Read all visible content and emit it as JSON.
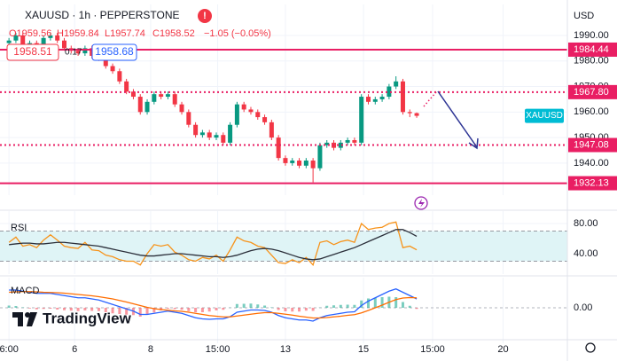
{
  "header": {
    "symbol": "XAUUSD · 1h · PEPPERSTONE",
    "ohlc": [
      "O1959.56",
      "H1959.84",
      "L1957.74",
      "C1958.52",
      "−1.05 (−0.05%)"
    ],
    "bid": "1958.51",
    "spread": "0.17",
    "ask": "1958.68",
    "currency": "USD",
    "symbol_tag": "XAUUSD",
    "logo": "TradingView"
  },
  "chart_data": [
    {
      "type": "candlestick",
      "up_color": "#089981",
      "down_color": "#f23645",
      "x": [
        0,
        1,
        2,
        3,
        4,
        5,
        6,
        7,
        8,
        9,
        10,
        11,
        12,
        13,
        14,
        15,
        16,
        17,
        18,
        19,
        20,
        21,
        22,
        23,
        24,
        25,
        26,
        27,
        28,
        29,
        30,
        31,
        32,
        33,
        34,
        35,
        36,
        37,
        38,
        39,
        40,
        41,
        42,
        43,
        44,
        45,
        46,
        47,
        48,
        49,
        50,
        51,
        52,
        53,
        54,
        55,
        56,
        57,
        58,
        59
      ],
      "open": [
        1987,
        1988,
        1990,
        1986,
        1987,
        1985,
        1989,
        1990,
        1988,
        1985,
        1984,
        1983,
        1985,
        1982,
        1981,
        1978,
        1976,
        1972,
        1968,
        1966,
        1960,
        1964,
        1967,
        1966,
        1967,
        1963,
        1960,
        1955,
        1951,
        1952,
        1950,
        1951,
        1948,
        1955,
        1963,
        1961,
        1960,
        1958,
        1956,
        1950,
        1942,
        1940,
        1941,
        1939,
        1941,
        1938,
        1947,
        1948,
        1946,
        1948,
        1949,
        1948,
        1966,
        1964,
        1965,
        1966,
        1970,
        1972,
        1960,
        1959.56
      ],
      "high": [
        1989,
        1991,
        1991,
        1988,
        1988,
        1990,
        1991,
        1991,
        1989,
        1986,
        1985,
        1986,
        1986,
        1983,
        1982,
        1979,
        1977,
        1973,
        1969,
        1967,
        1965,
        1968,
        1968,
        1968,
        1968,
        1964,
        1961,
        1956,
        1953,
        1953,
        1952,
        1952,
        1956,
        1964,
        1964,
        1962,
        1961,
        1959,
        1957,
        1951,
        1943,
        1942,
        1942,
        1942,
        1942,
        1948,
        1949,
        1949,
        1949,
        1950,
        1950,
        1967,
        1967,
        1966,
        1967,
        1971,
        1974,
        1973,
        1961,
        1959.84
      ],
      "low": [
        1986,
        1987,
        1985,
        1985,
        1984,
        1984,
        1988,
        1987,
        1984,
        1983,
        1982,
        1982,
        1981,
        1980,
        1977,
        1975,
        1971,
        1967,
        1965,
        1959,
        1959,
        1963,
        1965,
        1965,
        1962,
        1959,
        1954,
        1950,
        1950,
        1949,
        1949,
        1947,
        1947,
        1954,
        1960,
        1959,
        1957,
        1955,
        1949,
        1941,
        1939,
        1939,
        1938,
        1938,
        1932.5,
        1937,
        1946,
        1945,
        1945,
        1947,
        1947,
        1947,
        1963,
        1963,
        1964,
        1965,
        1969,
        1959,
        1958,
        1957.74
      ],
      "close": [
        1988,
        1990,
        1986,
        1987,
        1985,
        1989,
        1990,
        1988,
        1985,
        1984,
        1983,
        1985,
        1982,
        1981,
        1978,
        1976,
        1972,
        1968,
        1966,
        1960,
        1964,
        1967,
        1966,
        1967,
        1963,
        1960,
        1955,
        1951,
        1952,
        1950,
        1951,
        1948,
        1955,
        1963,
        1961,
        1960,
        1958,
        1956,
        1950,
        1942,
        1940,
        1941,
        1939,
        1941,
        1938,
        1947,
        1948,
        1946,
        1948,
        1949,
        1948,
        1966,
        1964,
        1965,
        1966,
        1970,
        1972,
        1960,
        1959.56,
        1958.52
      ],
      "xlim": [
        -1.3,
        80.8
      ],
      "xticks": [
        {
          "value": 0,
          "label": "6:00"
        },
        {
          "value": 9.5,
          "label": "6"
        },
        {
          "value": 20.5,
          "label": "8"
        },
        {
          "value": 30.2,
          "label": "15:00"
        },
        {
          "value": 40,
          "label": "13"
        },
        {
          "value": 51.3,
          "label": "15"
        },
        {
          "value": 61.3,
          "label": "15:00"
        },
        {
          "value": 71.5,
          "label": "20"
        }
      ],
      "ylim": [
        1929.2,
        2000.4
      ],
      "yticks": [
        {
          "value": 1990,
          "label": "1990.00"
        },
        {
          "value": 1980,
          "label": "1980.00"
        },
        {
          "value": 1970,
          "label": "1970.00"
        },
        {
          "value": 1960,
          "label": "1960.00"
        },
        {
          "value": 1950,
          "label": "1950.00"
        },
        {
          "value": 1940,
          "label": "1940.00"
        }
      ],
      "grid": true,
      "levels": [
        {
          "value": 1984.44,
          "label": "1984.44",
          "style": "solid"
        },
        {
          "value": 1967.8,
          "label": "1967.80",
          "style": "dotted"
        },
        {
          "value": 1947.08,
          "label": "1947.08",
          "style": "dotted"
        },
        {
          "value": 1932.13,
          "label": "1932.13",
          "style": "solid"
        }
      ],
      "level_color": "#e91e63"
    },
    {
      "type": "line",
      "title": "RSI",
      "ylim": [
        18.8,
        90.6
      ],
      "yticks": [
        {
          "value": 80,
          "label": "80.00"
        },
        {
          "value": 40,
          "label": "40.00"
        }
      ],
      "band": [
        30,
        70
      ],
      "band_color": "#dff4f6",
      "series": [
        {
          "color": "#f7931a",
          "values": [
            55,
            62,
            50,
            52,
            48,
            58,
            65,
            58,
            50,
            48,
            47,
            55,
            45,
            44,
            38,
            36,
            32,
            30,
            30,
            25,
            40,
            52,
            50,
            52,
            42,
            38,
            32,
            30,
            35,
            33,
            38,
            30,
            45,
            62,
            57,
            55,
            50,
            48,
            38,
            28,
            27,
            32,
            28,
            35,
            25,
            55,
            57,
            52,
            56,
            58,
            55,
            80,
            72,
            74,
            75,
            80,
            82,
            48,
            50,
            45
          ]
        },
        {
          "color": "#2a2e39",
          "values": [
            52,
            53,
            54,
            54,
            53,
            53,
            54,
            55,
            55,
            54,
            53,
            52,
            51,
            50,
            48,
            46,
            44,
            42,
            40,
            38,
            37,
            37,
            38,
            39,
            40,
            40,
            39,
            38,
            37,
            36,
            36,
            35,
            36,
            38,
            41,
            44,
            46,
            47,
            46,
            44,
            41,
            38,
            35,
            33,
            32,
            33,
            36,
            39,
            42,
            45,
            48,
            52,
            56,
            60,
            64,
            68,
            72,
            72,
            68,
            63
          ]
        }
      ]
    },
    {
      "type": "macd",
      "title": "MACD",
      "ylim": [
        -14,
        11.6
      ],
      "yticks": [
        {
          "value": 0,
          "label": "0.00"
        }
      ],
      "histogram": {
        "values": [
          1,
          0.8,
          0.2,
          -0.3,
          -0.7,
          -0.5,
          -0.4,
          -0.8,
          -1.1,
          -1.3,
          -1.5,
          -1.2,
          -1.4,
          -1.5,
          -2,
          -2.5,
          -2.8,
          -3.1,
          -3.3,
          -4,
          -3.2,
          -2.1,
          -1.2,
          -0.4,
          -0.6,
          -0.9,
          -1.5,
          -2,
          -2,
          -1.7,
          -1.2,
          -0.9,
          0.1,
          1.7,
          1.8,
          1.9,
          1.5,
          1,
          0.2,
          -1,
          -1.6,
          -1.7,
          -1.7,
          -1.3,
          -1.4,
          0.1,
          0.9,
          1.1,
          1.3,
          1.4,
          1.3,
          3.3,
          4.2,
          4.5,
          4.8,
          5,
          4.8,
          2.6,
          0.9,
          -0.5
        ],
        "colors": [
          "#22ab94",
          "#f7525f"
        ]
      },
      "series": [
        {
          "color": "#2962ff",
          "values": [
            8,
            8,
            7.5,
            7,
            6.5,
            6.5,
            6.5,
            6,
            5.5,
            5,
            4.5,
            4.5,
            4,
            3.5,
            2.5,
            1.5,
            0.5,
            -0.5,
            -1.5,
            -3,
            -3,
            -2.5,
            -2,
            -1.5,
            -2,
            -2.5,
            -3.5,
            -4.5,
            -5,
            -5.2,
            -5,
            -5,
            -4,
            -2,
            -1.5,
            -1,
            -1,
            -1.2,
            -2,
            -3.5,
            -4.5,
            -5,
            -5.5,
            -5.5,
            -6,
            -4.5,
            -3.5,
            -3,
            -2.5,
            -2,
            -1.8,
            1,
            3,
            4.5,
            6,
            7.5,
            8.5,
            7,
            5.5,
            4
          ]
        },
        {
          "color": "#ff6d00",
          "values": [
            7,
            7.2,
            7.3,
            7.3,
            7.2,
            7,
            6.9,
            6.8,
            6.6,
            6.3,
            6,
            5.7,
            5.4,
            5,
            4.5,
            4,
            3.3,
            2.6,
            1.8,
            1,
            0.2,
            -0.4,
            -0.8,
            -1.1,
            -1.4,
            -1.6,
            -2,
            -2.5,
            -3,
            -3.5,
            -3.8,
            -4.1,
            -4.1,
            -3.7,
            -3.3,
            -2.9,
            -2.5,
            -2.2,
            -2.2,
            -2.5,
            -2.9,
            -3.3,
            -3.8,
            -4.2,
            -4.6,
            -4.6,
            -4.4,
            -4.1,
            -3.8,
            -3.4,
            -3.1,
            -2.3,
            -1.2,
            0,
            1.2,
            2.5,
            3.7,
            4.4,
            4.6,
            4.5
          ]
        }
      ]
    }
  ]
}
